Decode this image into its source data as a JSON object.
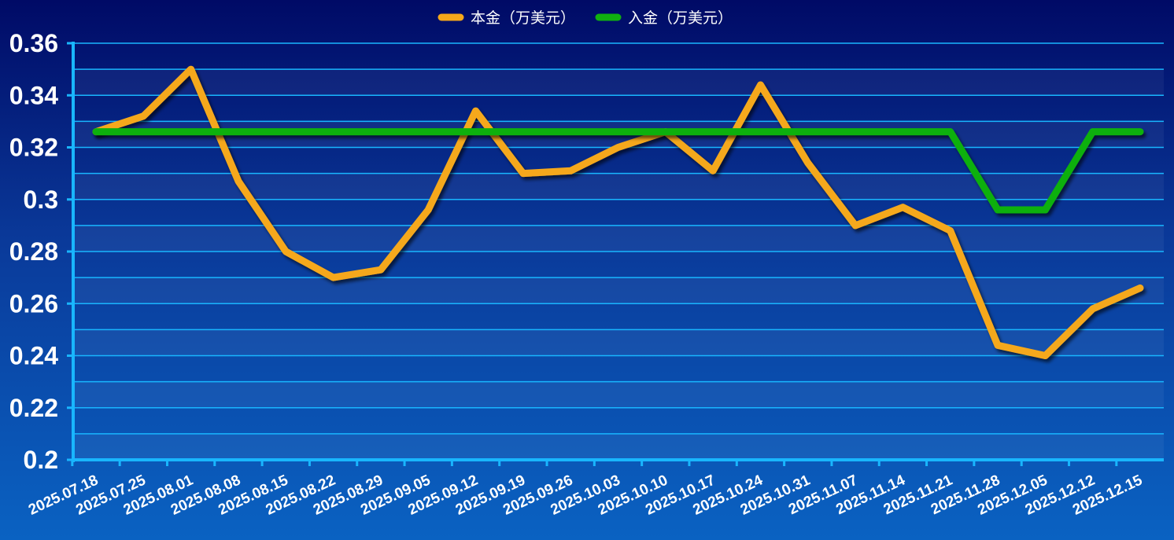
{
  "chart_data": {
    "type": "line",
    "legend_position": "top-center",
    "grid": true,
    "ylim": [
      0.2,
      0.36
    ],
    "y_ticks": [
      "0.36",
      "0.34",
      "0.32",
      "0.3",
      "0.28",
      "0.26",
      "0.24",
      "0.22",
      "0.2"
    ],
    "x_tick_labels": [
      "2025.07.18",
      "2025.07.25",
      "2025.08.01",
      "2025.08.08",
      "2025.08.15",
      "2025.08.22",
      "2025.08.29",
      "2025.09.05",
      "2025.09.12",
      "2025.09.19",
      "2025.09.26",
      "2025.10.03",
      "2025.10.10",
      "2025.10.17",
      "2025.10.24",
      "2025.10.31",
      "2025.11.07",
      "2025.11.14",
      "2025.11.21",
      "2025.11.28",
      "2025.12.05",
      "2025.12.12",
      "2025.12.15"
    ],
    "series": [
      {
        "name": "本金（万美元）",
        "color": "#f5a81a",
        "values": [
          0.326,
          0.332,
          0.35,
          0.307,
          0.28,
          0.27,
          0.273,
          0.296,
          0.334,
          0.31,
          0.311,
          0.32,
          0.326,
          0.311,
          0.344,
          0.314,
          0.29,
          0.297,
          0.288,
          0.244,
          0.24,
          0.258,
          0.266
        ]
      },
      {
        "name": "入金（万美元）",
        "color": "#10b010",
        "values": [
          0.326,
          0.326,
          0.326,
          0.326,
          0.326,
          0.326,
          0.326,
          0.326,
          0.326,
          0.326,
          0.326,
          0.326,
          0.326,
          0.326,
          0.326,
          0.326,
          0.326,
          0.326,
          0.326,
          0.296,
          0.296,
          0.326,
          0.326
        ]
      }
    ]
  }
}
